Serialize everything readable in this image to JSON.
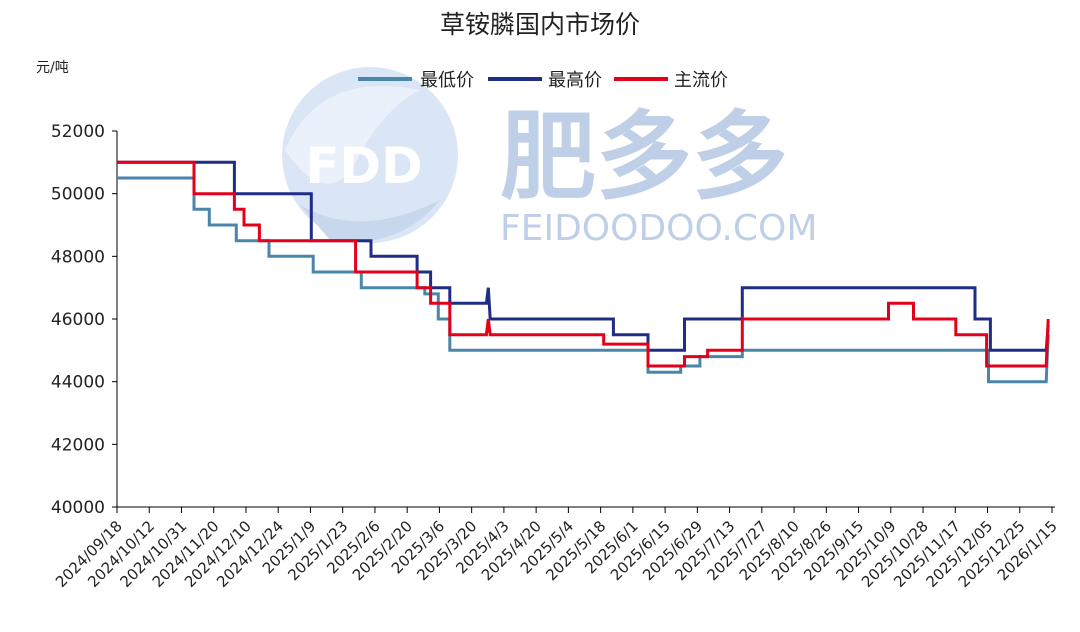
{
  "chart_data": {
    "type": "line",
    "title": "草铵膦国内市场价",
    "unit_label": "元/吨",
    "ylim": [
      40000,
      52000
    ],
    "y_ticks": [
      "40000",
      "42000",
      "44000",
      "46000",
      "48000",
      "50000",
      "52000"
    ],
    "x_range": [
      "2024-09-18",
      "2026-01-17"
    ],
    "x_tick_labels": [
      "2024/09/18",
      "2024/10/12",
      "2024/10/31",
      "2024/11/20",
      "2024/12/10",
      "2024/12/24",
      "2025/1/9",
      "2025/1/23",
      "2025/2/6",
      "2025/2/20",
      "2025/3/6",
      "2025/3/20",
      "2025/4/3",
      "2025/4/20",
      "2025/5/4",
      "2025/5/18",
      "2025/6/1",
      "2025/6/15",
      "2025/6/29",
      "2025/7/13",
      "2025/7/27",
      "2025/8/10",
      "2025/8/26",
      "2025/9/15",
      "2025/10/9",
      "2025/10/28",
      "2025/11/17",
      "2025/12/05",
      "2025/12/25",
      "2026/1/15"
    ],
    "legend_position": "top",
    "grid": false,
    "series": [
      {
        "name": "最低价",
        "color": "#4a86a8",
        "points": [
          [
            "2024-09-18",
            50500
          ],
          [
            "2024-10-28",
            50500
          ],
          [
            "2024-10-28",
            49500
          ],
          [
            "2024-11-05",
            49500
          ],
          [
            "2024-11-05",
            49000
          ],
          [
            "2024-11-19",
            49000
          ],
          [
            "2024-11-19",
            48500
          ],
          [
            "2024-12-06",
            48500
          ],
          [
            "2024-12-06",
            48000
          ],
          [
            "2024-12-29",
            48000
          ],
          [
            "2024-12-29",
            47500
          ],
          [
            "2025-01-23",
            47500
          ],
          [
            "2025-01-23",
            47000
          ],
          [
            "2025-02-25",
            47000
          ],
          [
            "2025-02-25",
            46800
          ],
          [
            "2025-03-04",
            46800
          ],
          [
            "2025-03-04",
            46000
          ],
          [
            "2025-03-10",
            46000
          ],
          [
            "2025-03-10",
            45000
          ],
          [
            "2025-04-01",
            45000
          ],
          [
            "2025-04-01",
            45000
          ],
          [
            "2025-06-21",
            45000
          ],
          [
            "2025-06-21",
            44300
          ],
          [
            "2025-07-08",
            44300
          ],
          [
            "2025-07-08",
            44500
          ],
          [
            "2025-07-18",
            44500
          ],
          [
            "2025-07-18",
            44800
          ],
          [
            "2025-08-09",
            44800
          ],
          [
            "2025-08-09",
            45000
          ],
          [
            "2025-12-15",
            45000
          ],
          [
            "2025-12-15",
            44000
          ],
          [
            "2026-01-14",
            44000
          ],
          [
            "2026-01-15",
            45500
          ]
        ]
      },
      {
        "name": "最高价",
        "color": "#1f2d86",
        "points": [
          [
            "2024-09-18",
            51000
          ],
          [
            "2024-11-18",
            51000
          ],
          [
            "2024-11-18",
            50000
          ],
          [
            "2024-12-28",
            50000
          ],
          [
            "2024-12-28",
            48500
          ],
          [
            "2025-01-28",
            48500
          ],
          [
            "2025-01-28",
            48000
          ],
          [
            "2025-02-21",
            48000
          ],
          [
            "2025-02-21",
            47500
          ],
          [
            "2025-02-28",
            47500
          ],
          [
            "2025-02-28",
            47000
          ],
          [
            "2025-03-10",
            47000
          ],
          [
            "2025-03-10",
            46500
          ],
          [
            "2025-03-29",
            46500
          ],
          [
            "2025-03-30",
            47000
          ],
          [
            "2025-03-31",
            46000
          ],
          [
            "2025-06-03",
            46000
          ],
          [
            "2025-06-03",
            45500
          ],
          [
            "2025-06-21",
            45500
          ],
          [
            "2025-06-21",
            45000
          ],
          [
            "2025-07-10",
            45000
          ],
          [
            "2025-07-10",
            46000
          ],
          [
            "2025-08-09",
            46000
          ],
          [
            "2025-08-09",
            47000
          ],
          [
            "2025-12-08",
            47000
          ],
          [
            "2025-12-08",
            46000
          ],
          [
            "2025-12-16",
            46000
          ],
          [
            "2025-12-16",
            45000
          ],
          [
            "2026-01-14",
            45000
          ],
          [
            "2026-01-15",
            45800
          ]
        ]
      },
      {
        "name": "主流价",
        "color": "#e3001b",
        "points": [
          [
            "2024-09-18",
            51000
          ],
          [
            "2024-10-28",
            51000
          ],
          [
            "2024-10-28",
            50000
          ],
          [
            "2024-11-18",
            50000
          ],
          [
            "2024-11-18",
            49500
          ],
          [
            "2024-11-23",
            49500
          ],
          [
            "2024-11-23",
            49000
          ],
          [
            "2024-12-01",
            49000
          ],
          [
            "2024-12-01",
            48500
          ],
          [
            "2025-01-20",
            48500
          ],
          [
            "2025-01-20",
            47500
          ],
          [
            "2025-02-21",
            47500
          ],
          [
            "2025-02-21",
            47000
          ],
          [
            "2025-02-28",
            47000
          ],
          [
            "2025-02-28",
            46500
          ],
          [
            "2025-03-10",
            46500
          ],
          [
            "2025-03-10",
            45500
          ],
          [
            "2025-03-29",
            45500
          ],
          [
            "2025-03-30",
            46000
          ],
          [
            "2025-03-31",
            45500
          ],
          [
            "2025-05-29",
            45500
          ],
          [
            "2025-05-29",
            45200
          ],
          [
            "2025-06-21",
            45200
          ],
          [
            "2025-06-21",
            44500
          ],
          [
            "2025-07-10",
            44500
          ],
          [
            "2025-07-10",
            44800
          ],
          [
            "2025-07-22",
            44800
          ],
          [
            "2025-07-22",
            45000
          ],
          [
            "2025-08-09",
            45000
          ],
          [
            "2025-08-09",
            46000
          ],
          [
            "2025-10-24",
            46000
          ],
          [
            "2025-10-24",
            46500
          ],
          [
            "2025-11-06",
            46500
          ],
          [
            "2025-11-06",
            46000
          ],
          [
            "2025-11-28",
            46000
          ],
          [
            "2025-11-28",
            45500
          ],
          [
            "2025-12-14",
            45500
          ],
          [
            "2025-12-14",
            44500
          ],
          [
            "2026-01-14",
            44500
          ],
          [
            "2026-01-15",
            46000
          ]
        ]
      }
    ]
  },
  "watermark": {
    "logo_text": "FDD",
    "brand_cn": "肥多多",
    "brand_en": "FEIDOODOO.COM",
    "logo_color": "#7da2cf",
    "text_color": "#5b84c4"
  }
}
